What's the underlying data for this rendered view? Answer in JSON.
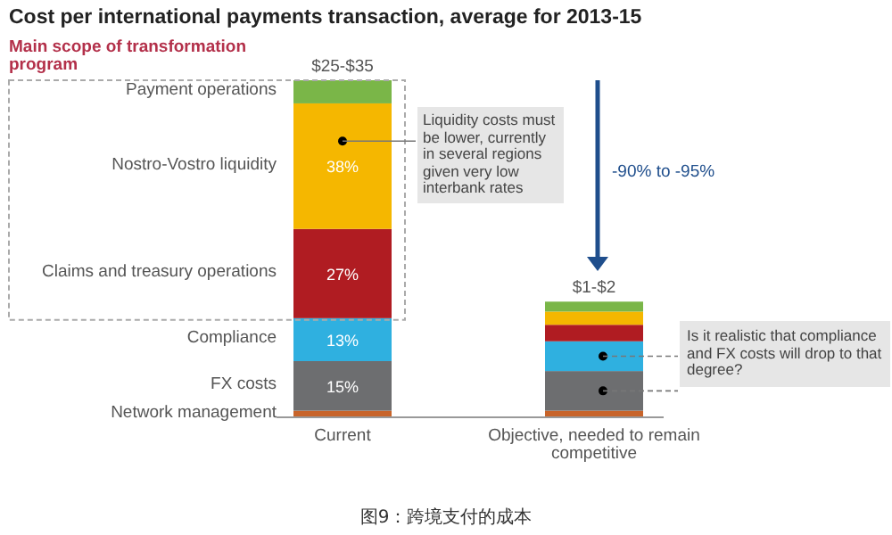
{
  "chart_data": {
    "type": "bar",
    "stacked": true,
    "title": "Cost per international payments transaction, average for 2013-15",
    "categories": [
      "Current",
      "Objective, needed to remain competitive"
    ],
    "series": [
      {
        "name": "Network management",
        "color": "#c8642a",
        "values": [
          2,
          2
        ],
        "value_labels": [
          null,
          null
        ]
      },
      {
        "name": "FX costs",
        "color": "#6d6e70",
        "values": [
          15,
          12
        ],
        "value_labels": [
          "15%",
          null
        ]
      },
      {
        "name": "Compliance",
        "color": "#2fb0e0",
        "values": [
          13,
          9
        ],
        "value_labels": [
          "13%",
          null
        ]
      },
      {
        "name": "Claims and treasury operations",
        "color": "#b01c22",
        "values": [
          27,
          5
        ],
        "value_labels": [
          "27%",
          null
        ]
      },
      {
        "name": "Nostro-Vostro liquidity",
        "color": "#f5b700",
        "values": [
          38,
          4
        ],
        "value_labels": [
          "38%",
          null
        ]
      },
      {
        "name": "Payment operations",
        "color": "#7ab648",
        "values": [
          7,
          3
        ],
        "value_labels": [
          null,
          null
        ]
      }
    ],
    "annotations": [
      "Main scope of transformation program",
      {
        "text": "$25-$35",
        "x": "Current",
        "y": 102
      },
      {
        "text": "$1-$2",
        "x": "Objective, needed to remain competitive",
        "y": 35
      },
      "-90% to -95%",
      "Liquidity costs must be lower, currently in several regions given very low interbank rates",
      "Is it realistic that compliance and FX costs will drop to that degree?",
      "图9：跨境支付的成本"
    ]
  }
}
